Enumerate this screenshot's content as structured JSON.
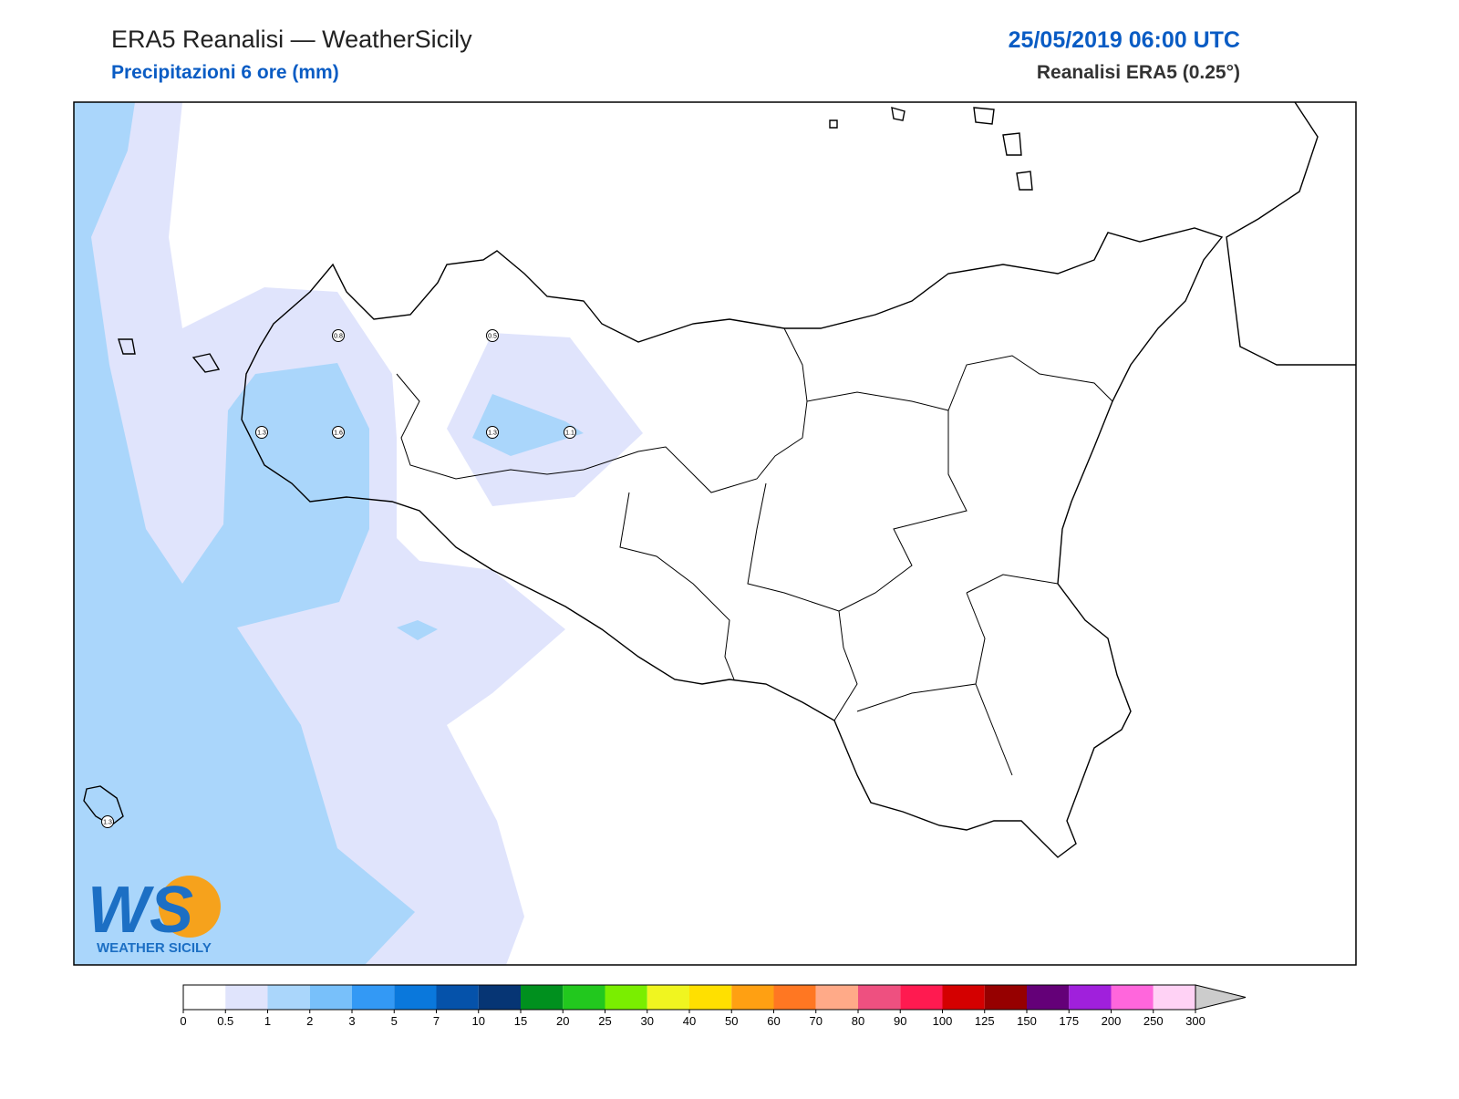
{
  "header": {
    "title": "ERA5 Reanalisi — WeatherSicily",
    "subtitle": "Precipitazioni 6 ore (mm)",
    "datetime": "25/05/2019 06:00 UTC",
    "source": "Reanalisi ERA5 (0.25°)"
  },
  "map": {
    "stations": [
      0.8,
      0.5,
      1.3,
      1.6,
      1.3,
      1.1,
      1.3
    ]
  },
  "logo": {
    "letters": "WS",
    "name": "WEATHER SICILY"
  },
  "colorbar": {
    "ticks": [
      0,
      0.5,
      1,
      2,
      3,
      5,
      7,
      10,
      15,
      20,
      25,
      30,
      40,
      50,
      60,
      70,
      80,
      90,
      100,
      125,
      150,
      175,
      200,
      250,
      300
    ],
    "colors": [
      "#ffffff",
      "#e0e4fc",
      "#aad6fb",
      "#78c0fa",
      "#3399f5",
      "#0a78dc",
      "#0552aa",
      "#063574",
      "#00901e",
      "#22c81e",
      "#7aee00",
      "#f0f520",
      "#ffe000",
      "#ffa012",
      "#ff7722",
      "#ffaa88",
      "#ee5080",
      "#ff1a50",
      "#d40000",
      "#960000",
      "#640078",
      "#a020dc",
      "#ff66dc",
      "#ffd2f5"
    ],
    "over_color": "#cccccc"
  }
}
